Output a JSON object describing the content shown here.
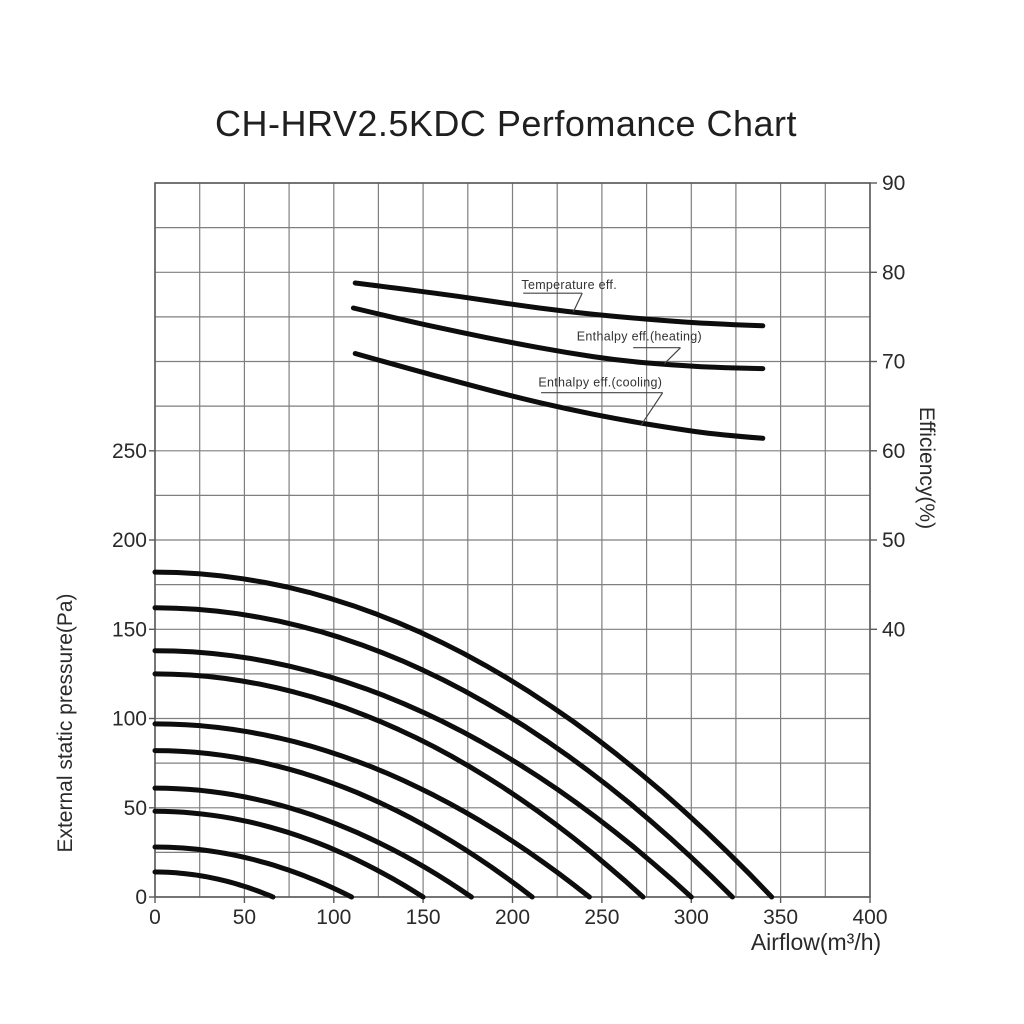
{
  "page": {
    "background": "#ffffff"
  },
  "chart_data": {
    "type": "line",
    "title": "CH-HRV2.5KDC Perfomance Chart",
    "x_axis": {
      "label": "Airflow(m³/h)",
      "min": 0,
      "max": 400,
      "major_tick_step": 50,
      "grid_step": 25,
      "ticks": [
        0,
        50,
        100,
        150,
        200,
        250,
        300,
        350,
        400
      ]
    },
    "y_axis_left": {
      "label": "External static pressure(Pa)",
      "min": 0,
      "max_labeled": 250,
      "grid_max": 400,
      "major_tick_step": 50,
      "grid_step": 25,
      "ticks": [
        0,
        50,
        100,
        150,
        200,
        250
      ]
    },
    "y_axis_right": {
      "label": "Efficiency(%)",
      "top_value": 90,
      "bottom_value": 10,
      "major_tick_step": 10,
      "grid_step": 5,
      "ticks": [
        40,
        50,
        60,
        70,
        80,
        90
      ]
    },
    "grid": {
      "visible": true,
      "step_x_m3h": 25,
      "step_y_pa": 25
    },
    "efficiency_curves": [
      {
        "name": "Temperature eff.",
        "y_axis": "right",
        "points": [
          [
            112,
            78.8
          ],
          [
            140,
            78.1
          ],
          [
            170,
            77.3
          ],
          [
            200,
            76.4
          ],
          [
            230,
            75.6
          ],
          [
            260,
            75.0
          ],
          [
            290,
            74.5
          ],
          [
            315,
            74.2
          ],
          [
            340,
            74.0
          ]
        ]
      },
      {
        "name": "Enthalpy eff.(heating)",
        "y_axis": "right",
        "points": [
          [
            111,
            76.0
          ],
          [
            140,
            74.6
          ],
          [
            170,
            73.3
          ],
          [
            200,
            72.1
          ],
          [
            230,
            71.0
          ],
          [
            260,
            70.1
          ],
          [
            290,
            69.6
          ],
          [
            315,
            69.3
          ],
          [
            340,
            69.2
          ]
        ]
      },
      {
        "name": "Enthalpy eff.(cooling)",
        "y_axis": "right",
        "points": [
          [
            112,
            70.9
          ],
          [
            140,
            69.3
          ],
          [
            170,
            67.7
          ],
          [
            200,
            66.1
          ],
          [
            230,
            64.7
          ],
          [
            260,
            63.5
          ],
          [
            290,
            62.5
          ],
          [
            315,
            61.8
          ],
          [
            340,
            61.4
          ]
        ]
      }
    ],
    "fan_curves": [
      {
        "max_static_pressure_pa": 182,
        "max_airflow_m3h": 345
      },
      {
        "max_static_pressure_pa": 162,
        "max_airflow_m3h": 323
      },
      {
        "max_static_pressure_pa": 138,
        "max_airflow_m3h": 300
      },
      {
        "max_static_pressure_pa": 125,
        "max_airflow_m3h": 273
      },
      {
        "max_static_pressure_pa": 97,
        "max_airflow_m3h": 243
      },
      {
        "max_static_pressure_pa": 82,
        "max_airflow_m3h": 211
      },
      {
        "max_static_pressure_pa": 61,
        "max_airflow_m3h": 177
      },
      {
        "max_static_pressure_pa": 48,
        "max_airflow_m3h": 150
      },
      {
        "max_static_pressure_pa": 28,
        "max_airflow_m3h": 110
      },
      {
        "max_static_pressure_pa": 14,
        "max_airflow_m3h": 66
      }
    ],
    "fan_curve_model": "pressure = max_static_pressure_pa * (1 - (airflow / max_airflow_m3h)^2)",
    "annotations": [
      {
        "text": "Temperature eff.",
        "text_at": [
          205,
          78.1
        ],
        "underline": [
          [
            206,
            77.65
          ],
          [
            239,
            77.65
          ]
        ],
        "pointer": [
          [
            239,
            77.65
          ],
          [
            234,
            75.55
          ]
        ]
      },
      {
        "text": "Enthalpy eff.(heating)",
        "text_at": [
          236,
          72.35
        ],
        "underline": [
          [
            267.5,
            71.55
          ],
          [
            294,
            71.55
          ]
        ],
        "pointer": [
          [
            294,
            71.55
          ],
          [
            285,
            69.75
          ]
        ]
      },
      {
        "text": "Enthalpy eff.(cooling)",
        "text_at": [
          214.5,
          67.2
        ],
        "underline": [
          [
            216,
            66.5
          ],
          [
            284,
            66.5
          ]
        ],
        "pointer": [
          [
            284,
            66.5
          ],
          [
            272,
            62.9
          ]
        ]
      }
    ],
    "colors": {
      "curve": "#0d0d0d",
      "grid": "#7f7f7f",
      "border": "#5a5a5a",
      "text": "#2a2a2a",
      "leader": "#444444",
      "background": "#ffffff"
    }
  }
}
